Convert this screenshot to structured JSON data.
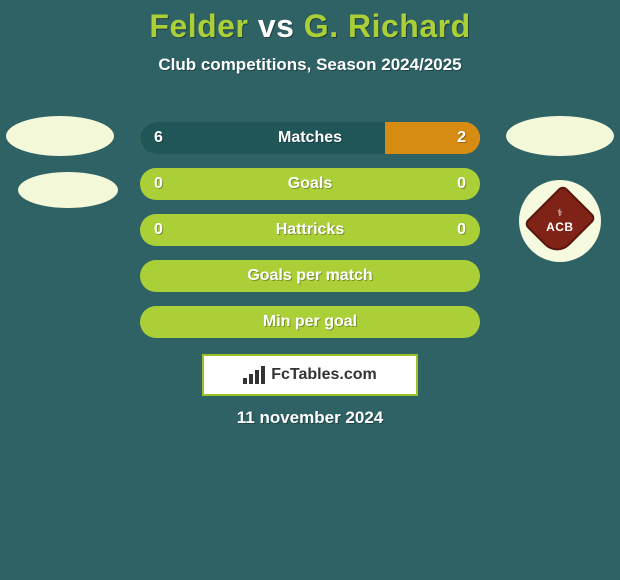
{
  "colors": {
    "background": "#2e6265",
    "title_color": "#ffffff",
    "title_accent": "#abd037",
    "subtitle_color": "#ffffff",
    "avatar_bg": "#f3f8d8",
    "club_circle_bg": "#f6fbe0",
    "bar_bg": "#abd037",
    "bar_fill": "#215659",
    "bar_accent": "#d68b12",
    "bar_text": "#ffffff",
    "logo_bg": "#ffffff",
    "logo_border": "#9cbf2c",
    "logo_text": "#333333",
    "date_color": "#ffffff",
    "shield_fill": "#7f2317",
    "shield_border": "#5b160c"
  },
  "title": {
    "part1": "Felder",
    "mid": "vs",
    "part2": "G. Richard",
    "fontsize": 32
  },
  "subtitle": "Club competitions, Season 2024/2025",
  "club_letters": "ACB",
  "bars": [
    {
      "label": "Matches",
      "left_val": "6",
      "right_val": "2",
      "left_pct": 72,
      "right_pct": 28,
      "right_color": "#d68b12"
    },
    {
      "label": "Goals",
      "left_val": "0",
      "right_val": "0",
      "left_pct": 0,
      "right_pct": 0
    },
    {
      "label": "Hattricks",
      "left_val": "0",
      "right_val": "0",
      "left_pct": 0,
      "right_pct": 0
    },
    {
      "label": "Goals per match",
      "left_val": "",
      "right_val": "",
      "left_pct": 0,
      "right_pct": 0
    },
    {
      "label": "Min per goal",
      "left_val": "",
      "right_val": "",
      "left_pct": 0,
      "right_pct": 0
    }
  ],
  "logo_text": "FcTables.com",
  "date": "11 november 2024"
}
